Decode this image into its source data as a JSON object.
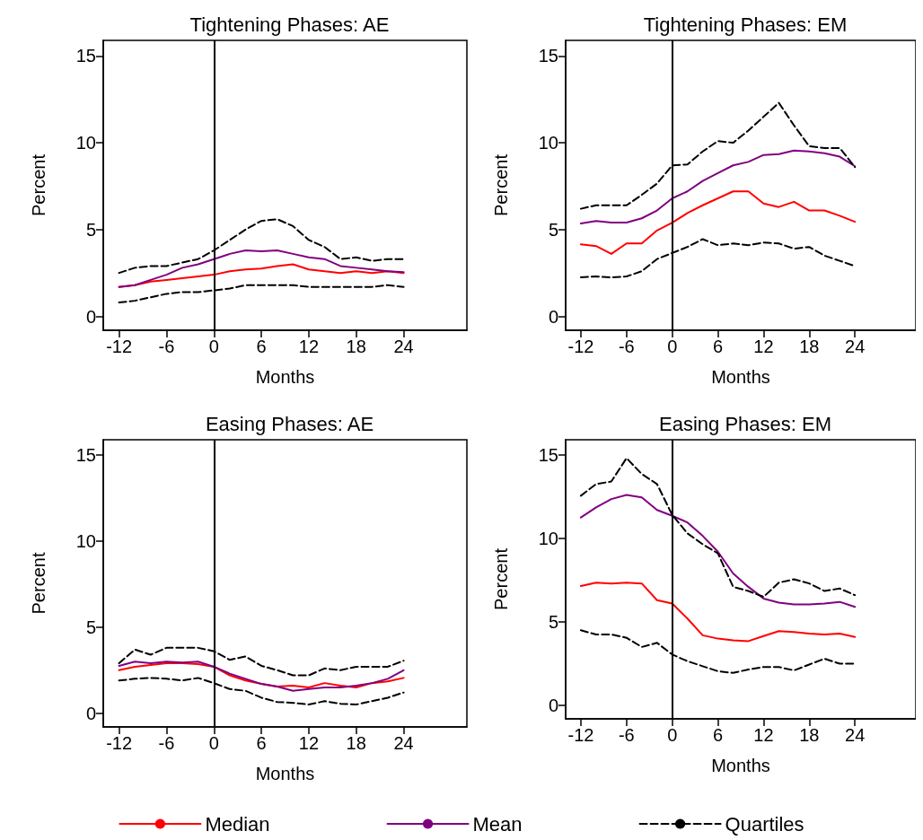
{
  "chart_data": [
    {
      "type": "line",
      "title": "Tightening Phases: AE",
      "xlabel": "Months",
      "ylabel": "Percent",
      "x": [
        -12,
        -10,
        -8,
        -6,
        -4,
        -2,
        0,
        2,
        4,
        6,
        8,
        10,
        12,
        14,
        16,
        18,
        20,
        22,
        24
      ],
      "xlim": [
        -14,
        32
      ],
      "xticks": [
        -12,
        -6,
        0,
        6,
        12,
        18,
        24
      ],
      "ylim": [
        -0.8,
        15.9
      ],
      "yticks": [
        0,
        5,
        10,
        15
      ],
      "grid": false,
      "legend": false,
      "ref_lines": [
        {
          "axis": "x",
          "value": 0,
          "color": "#000000"
        }
      ],
      "series": [
        {
          "color": "#ff0000",
          "line_style": "solid",
          "values": [
            1.7,
            1.8,
            2.0,
            2.1,
            2.2,
            2.3,
            2.4,
            2.6,
            2.7,
            2.75,
            2.9,
            3.0,
            2.7,
            2.6,
            2.5,
            2.6,
            2.5,
            2.6,
            2.5
          ]
        },
        {
          "color": "#800080",
          "line_style": "solid",
          "values": [
            1.7,
            1.8,
            2.1,
            2.4,
            2.8,
            3.0,
            3.3,
            3.6,
            3.8,
            3.75,
            3.8,
            3.6,
            3.4,
            3.3,
            2.9,
            2.8,
            2.7,
            2.6,
            2.55
          ]
        },
        {
          "color": "#000000",
          "line_style": "dashed",
          "values": [
            2.5,
            2.8,
            2.9,
            2.9,
            3.1,
            3.3,
            3.8,
            4.4,
            5.0,
            5.5,
            5.6,
            5.2,
            4.4,
            4.0,
            3.3,
            3.4,
            3.2,
            3.3,
            3.3
          ]
        },
        {
          "color": "#000000",
          "line_style": "dashed",
          "values": [
            0.8,
            0.9,
            1.1,
            1.3,
            1.4,
            1.4,
            1.5,
            1.6,
            1.8,
            1.8,
            1.8,
            1.8,
            1.7,
            1.7,
            1.7,
            1.7,
            1.7,
            1.8,
            1.7
          ]
        }
      ]
    },
    {
      "type": "line",
      "title": "Tightening Phases: EM",
      "xlabel": "Months",
      "ylabel": "Percent",
      "x": [
        -12,
        -10,
        -8,
        -6,
        -4,
        -2,
        0,
        2,
        4,
        6,
        8,
        10,
        12,
        14,
        16,
        18,
        20,
        22,
        24
      ],
      "xlim": [
        -14,
        32
      ],
      "xticks": [
        -12,
        -6,
        0,
        6,
        12,
        18,
        24
      ],
      "ylim": [
        -0.8,
        15.9
      ],
      "yticks": [
        0,
        5,
        10,
        15
      ],
      "grid": false,
      "legend": false,
      "ref_lines": [
        {
          "axis": "x",
          "value": 0,
          "color": "#000000"
        }
      ],
      "series": [
        {
          "color": "#ff0000",
          "line_style": "solid",
          "values": [
            4.15,
            4.05,
            3.6,
            4.2,
            4.2,
            4.95,
            5.4,
            5.95,
            6.4,
            6.8,
            7.2,
            7.2,
            6.5,
            6.3,
            6.6,
            6.1,
            6.1,
            5.8,
            5.45
          ]
        },
        {
          "color": "#800080",
          "line_style": "solid",
          "values": [
            5.35,
            5.5,
            5.4,
            5.4,
            5.65,
            6.1,
            6.8,
            7.2,
            7.8,
            8.25,
            8.7,
            8.9,
            9.3,
            9.35,
            9.55,
            9.5,
            9.4,
            9.2,
            8.65
          ]
        },
        {
          "color": "#000000",
          "line_style": "dashed",
          "values": [
            6.2,
            6.4,
            6.4,
            6.4,
            7.0,
            7.65,
            8.7,
            8.75,
            9.5,
            10.1,
            10.0,
            10.7,
            11.5,
            12.3,
            11.0,
            9.8,
            9.7,
            9.7,
            8.6
          ]
        },
        {
          "color": "#000000",
          "line_style": "dashed",
          "values": [
            2.25,
            2.3,
            2.25,
            2.3,
            2.6,
            3.3,
            3.65,
            4.0,
            4.45,
            4.1,
            4.2,
            4.1,
            4.25,
            4.2,
            3.9,
            4.0,
            3.5,
            3.2,
            2.9
          ]
        }
      ]
    },
    {
      "type": "line",
      "title": "Easing Phases: AE",
      "xlabel": "Months",
      "ylabel": "Percent",
      "x": [
        -12,
        -10,
        -8,
        -6,
        -4,
        -2,
        0,
        2,
        4,
        6,
        8,
        10,
        12,
        14,
        16,
        18,
        20,
        22,
        24
      ],
      "xlim": [
        -14,
        32
      ],
      "xticks": [
        -12,
        -6,
        0,
        6,
        12,
        18,
        24
      ],
      "ylim": [
        -0.8,
        15.9
      ],
      "yticks": [
        0,
        5,
        10,
        15
      ],
      "grid": false,
      "legend": "bottom",
      "ref_lines": [
        {
          "axis": "x",
          "value": 0,
          "color": "#000000"
        }
      ],
      "series": [
        {
          "name": "Median",
          "color": "#ff0000",
          "line_style": "solid",
          "values": [
            2.5,
            2.7,
            2.8,
            2.9,
            2.9,
            2.85,
            2.7,
            2.2,
            1.9,
            1.7,
            1.55,
            1.6,
            1.5,
            1.75,
            1.6,
            1.5,
            1.75,
            1.85,
            2.05
          ]
        },
        {
          "name": "Mean",
          "color": "#800080",
          "line_style": "solid",
          "values": [
            2.75,
            3.0,
            2.9,
            3.0,
            2.95,
            3.0,
            2.7,
            2.3,
            2.0,
            1.7,
            1.55,
            1.3,
            1.4,
            1.5,
            1.5,
            1.6,
            1.75,
            2.0,
            2.5
          ]
        },
        {
          "name": "Quartiles",
          "color": "#000000",
          "line_style": "dashed",
          "values": [
            2.9,
            3.7,
            3.4,
            3.8,
            3.8,
            3.8,
            3.6,
            3.1,
            3.3,
            2.75,
            2.5,
            2.2,
            2.2,
            2.6,
            2.5,
            2.7,
            2.7,
            2.7,
            3.05
          ]
        },
        {
          "color": "#000000",
          "line_style": "dashed",
          "values": [
            1.9,
            2.0,
            2.05,
            2.0,
            1.9,
            2.05,
            1.75,
            1.4,
            1.3,
            0.9,
            0.65,
            0.6,
            0.5,
            0.7,
            0.55,
            0.5,
            0.7,
            0.9,
            1.2
          ]
        }
      ]
    },
    {
      "type": "line",
      "title": "Easing Phases: EM",
      "xlabel": "Months",
      "ylabel": "Percent",
      "x": [
        -12,
        -10,
        -8,
        -6,
        -4,
        -2,
        0,
        2,
        4,
        6,
        8,
        10,
        12,
        14,
        16,
        18,
        20,
        22,
        24
      ],
      "xlim": [
        -14,
        32
      ],
      "xticks": [
        -12,
        -6,
        0,
        6,
        12,
        18,
        24
      ],
      "ylim": [
        -0.8,
        15.9
      ],
      "yticks": [
        0,
        5,
        10,
        15
      ],
      "grid": false,
      "legend": false,
      "ref_lines": [
        {
          "axis": "x",
          "value": 0,
          "color": "#000000"
        }
      ],
      "series": [
        {
          "color": "#ff0000",
          "line_style": "solid",
          "values": [
            7.15,
            7.35,
            7.3,
            7.35,
            7.3,
            6.3,
            6.1,
            5.2,
            4.2,
            4.0,
            3.9,
            3.85,
            4.15,
            4.45,
            4.4,
            4.3,
            4.25,
            4.3,
            4.1
          ]
        },
        {
          "color": "#800080",
          "line_style": "solid",
          "values": [
            11.25,
            11.85,
            12.35,
            12.6,
            12.45,
            11.7,
            11.35,
            10.95,
            10.15,
            9.2,
            7.9,
            7.1,
            6.4,
            6.15,
            6.05,
            6.05,
            6.1,
            6.2,
            5.9
          ]
        },
        {
          "color": "#000000",
          "line_style": "dashed",
          "values": [
            12.55,
            13.25,
            13.4,
            14.8,
            13.85,
            13.25,
            11.4,
            10.3,
            9.65,
            9.1,
            7.1,
            6.85,
            6.5,
            7.35,
            7.55,
            7.3,
            6.85,
            7.0,
            6.6
          ]
        },
        {
          "color": "#000000",
          "line_style": "dashed",
          "values": [
            4.5,
            4.25,
            4.25,
            4.05,
            3.5,
            3.75,
            3.05,
            2.65,
            2.35,
            2.05,
            1.95,
            2.15,
            2.3,
            2.3,
            2.1,
            2.45,
            2.8,
            2.5,
            2.5
          ]
        }
      ]
    }
  ]
}
